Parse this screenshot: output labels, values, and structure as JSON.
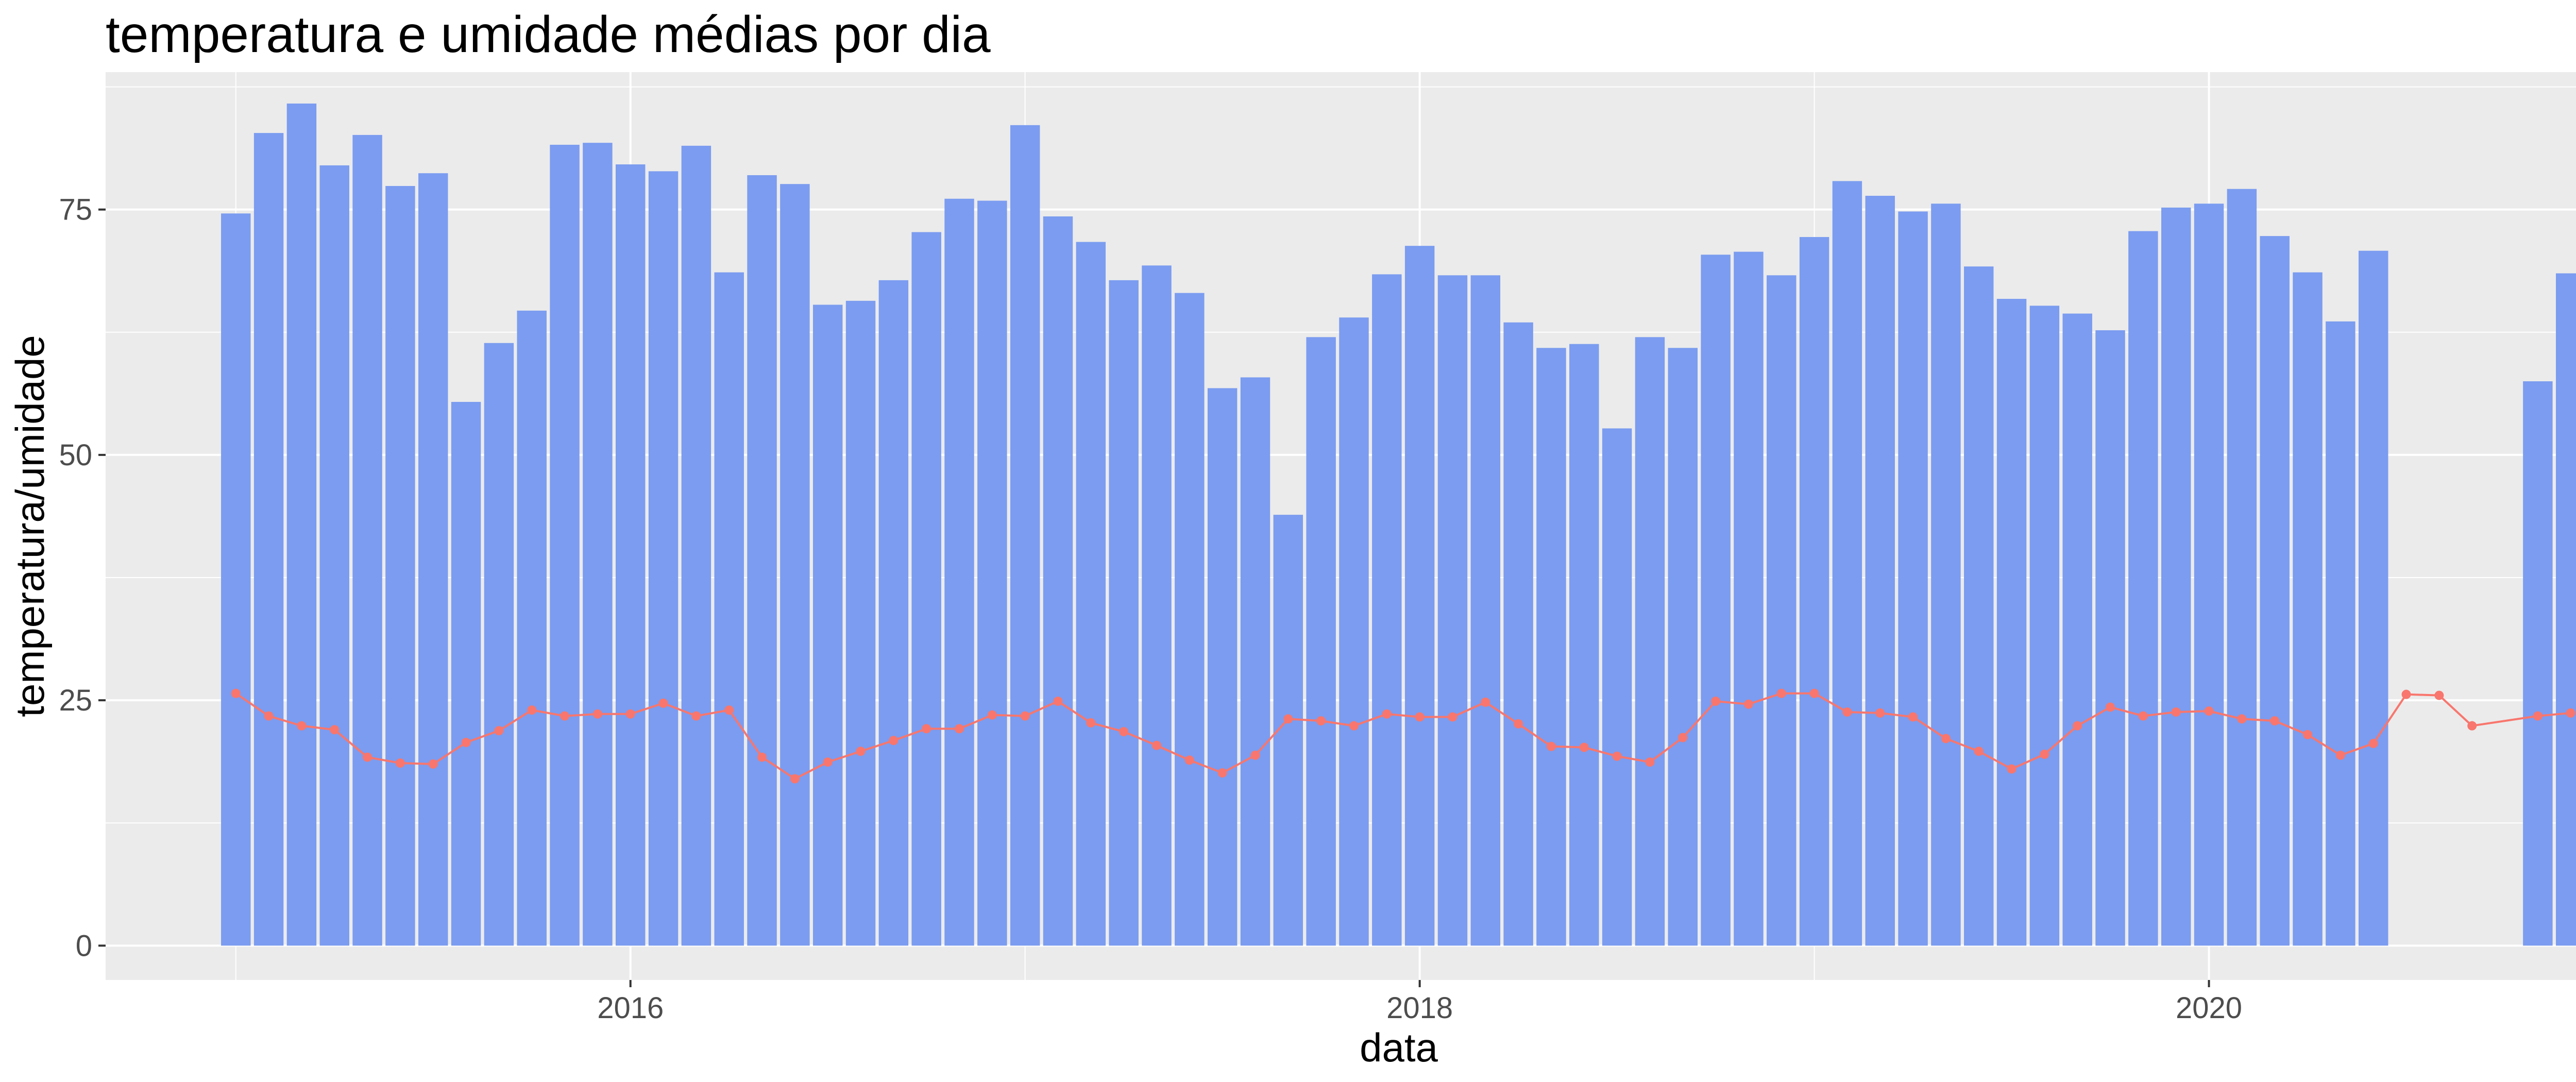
{
  "chart_data": {
    "type": "bar",
    "title": "temperatura e umidade médias por dia",
    "xlabel": "data",
    "ylabel": "temperatura/umidade",
    "ylim": [
      -3.5,
      89
    ],
    "xlim": [
      2014.67,
      2021.25
    ],
    "x_ticks": [
      2016,
      2018,
      2020
    ],
    "x_tick_labels": [
      "2016",
      "2018",
      "2020"
    ],
    "y_ticks": [
      0,
      25,
      50,
      75
    ],
    "y_tick_labels": [
      "0",
      "25",
      "50",
      "75"
    ],
    "grid": true,
    "legend": "none",
    "colors": {
      "bars": "#7b9cf0",
      "line": "#f8766d",
      "panel": "#ebebeb",
      "grid": "#ffffff"
    },
    "x": [
      "2015-01",
      "2015-02",
      "2015-03",
      "2015-04",
      "2015-05",
      "2015-06",
      "2015-07",
      "2015-08",
      "2015-09",
      "2015-10",
      "2015-11",
      "2015-12",
      "2016-01",
      "2016-02",
      "2016-03",
      "2016-04",
      "2016-05",
      "2016-06",
      "2016-07",
      "2016-08",
      "2016-09",
      "2016-10",
      "2016-11",
      "2016-12",
      "2017-01",
      "2017-02",
      "2017-03",
      "2017-04",
      "2017-05",
      "2017-06",
      "2017-07",
      "2017-08",
      "2017-09",
      "2017-10",
      "2017-11",
      "2017-12",
      "2018-01",
      "2018-02",
      "2018-03",
      "2018-04",
      "2018-05",
      "2018-06",
      "2018-07",
      "2018-08",
      "2018-09",
      "2018-10",
      "2018-11",
      "2018-12",
      "2019-01",
      "2019-02",
      "2019-03",
      "2019-04",
      "2019-05",
      "2019-06",
      "2019-07",
      "2019-08",
      "2019-09",
      "2019-10",
      "2019-11",
      "2019-12",
      "2020-01",
      "2020-02",
      "2020-03",
      "2020-04",
      "2020-05",
      "2020-06",
      "2020-07",
      "2020-08",
      "2020-09",
      "2020-10",
      "2020-11",
      "2020-12"
    ],
    "series": [
      {
        "kind": "bar",
        "values": [
          74.6,
          82.8,
          85.8,
          79.5,
          82.6,
          77.4,
          78.7,
          55.4,
          61.4,
          64.7,
          81.6,
          81.8,
          79.6,
          78.9,
          81.5,
          68.6,
          78.5,
          77.6,
          65.3,
          65.7,
          67.8,
          72.7,
          76.1,
          75.9,
          83.6,
          74.3,
          71.7,
          67.8,
          69.3,
          66.5,
          56.8,
          57.9,
          43.9,
          62.0,
          64.0,
          68.4,
          71.3,
          68.3,
          68.3,
          63.5,
          60.9,
          61.3,
          52.7,
          62.0,
          60.9,
          70.4,
          70.7,
          68.3,
          72.2,
          77.9,
          76.4,
          74.8,
          75.6,
          69.2,
          65.9,
          65.2,
          64.4,
          62.7,
          72.8,
          75.2,
          75.6,
          77.1,
          72.3,
          68.6,
          63.6,
          70.8,
          null,
          null,
          null,
          null,
          57.5,
          68.5
        ]
      },
      {
        "kind": "line",
        "values": [
          25.7,
          23.4,
          22.4,
          22.0,
          19.2,
          18.6,
          18.5,
          20.7,
          21.9,
          24.0,
          23.4,
          23.6,
          23.6,
          24.7,
          23.4,
          24.0,
          19.2,
          17.0,
          18.7,
          19.8,
          20.9,
          22.1,
          22.1,
          23.5,
          23.4,
          24.9,
          22.7,
          21.8,
          20.4,
          18.9,
          17.6,
          19.4,
          23.1,
          22.9,
          22.4,
          23.6,
          23.3,
          23.3,
          24.8,
          22.6,
          20.3,
          20.2,
          19.3,
          18.7,
          21.2,
          24.9,
          24.6,
          25.7,
          25.7,
          23.8,
          23.7,
          23.3,
          21.1,
          19.8,
          18.0,
          19.5,
          22.4,
          24.3,
          23.4,
          23.8,
          23.9,
          23.1,
          22.9,
          21.5,
          19.4,
          20.6,
          25.6,
          25.5,
          22.4,
          null,
          23.4,
          23.7
        ]
      }
    ]
  }
}
